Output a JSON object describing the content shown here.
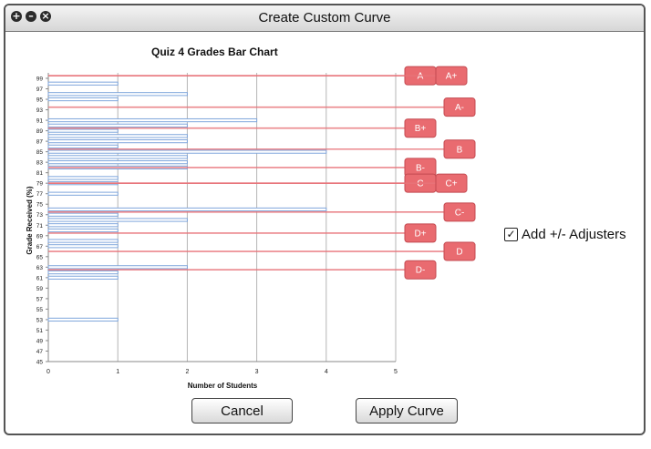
{
  "window": {
    "title": "Create Custom Curve"
  },
  "title_controls": [
    "add-icon",
    "minimize-icon",
    "close-icon"
  ],
  "chart_data": {
    "type": "bar",
    "orientation": "horizontal",
    "title": "Quiz 4 Grades Bar Chart",
    "xlabel": "Number of Students",
    "ylabel": "Grade Received (%)",
    "xlim": [
      0,
      5
    ],
    "ylim": [
      45,
      100
    ],
    "xticks": [
      0,
      1,
      2,
      3,
      4,
      5
    ],
    "yticks": [
      99,
      97,
      95,
      93,
      91,
      89,
      87,
      85,
      83,
      81,
      79,
      77,
      75,
      73,
      71,
      69,
      67,
      65,
      63,
      61,
      59,
      57,
      55,
      53,
      51,
      49,
      47,
      45
    ],
    "grid": true,
    "bar_color": "#7fa6dc",
    "bars": [
      {
        "grade": 98,
        "students": 1
      },
      {
        "grade": 96,
        "students": 2
      },
      {
        "grade": 95,
        "students": 1
      },
      {
        "grade": 91,
        "students": 3
      },
      {
        "grade": 90,
        "students": 2
      },
      {
        "grade": 89,
        "students": 1
      },
      {
        "grade": 88,
        "students": 2
      },
      {
        "grade": 87,
        "students": 2
      },
      {
        "grade": 86,
        "students": 1
      },
      {
        "grade": 85,
        "students": 4
      },
      {
        "grade": 84,
        "students": 2
      },
      {
        "grade": 83,
        "students": 2
      },
      {
        "grade": 82,
        "students": 2
      },
      {
        "grade": 80,
        "students": 1
      },
      {
        "grade": 79,
        "students": 1
      },
      {
        "grade": 77,
        "students": 1
      },
      {
        "grade": 74,
        "students": 4
      },
      {
        "grade": 73,
        "students": 1
      },
      {
        "grade": 72,
        "students": 2
      },
      {
        "grade": 71,
        "students": 1
      },
      {
        "grade": 70,
        "students": 1
      },
      {
        "grade": 68,
        "students": 1
      },
      {
        "grade": 67,
        "students": 1
      },
      {
        "grade": 63,
        "students": 2
      },
      {
        "grade": 62,
        "students": 1
      },
      {
        "grade": 61,
        "students": 1
      },
      {
        "grade": 53,
        "students": 1
      }
    ],
    "cutoff_color": "#e8747a",
    "cutoffs": [
      {
        "label": "A",
        "grade": 99.5,
        "adjuster": false
      },
      {
        "label": "A+",
        "grade": 99.5,
        "adjuster": true
      },
      {
        "label": "A-",
        "grade": 93.5,
        "adjuster": true
      },
      {
        "label": "B+",
        "grade": 89.5,
        "adjuster": true
      },
      {
        "label": "B",
        "grade": 85.5,
        "adjuster": false
      },
      {
        "label": "B-",
        "grade": 82,
        "adjuster": true
      },
      {
        "label": "C",
        "grade": 79,
        "adjuster": false
      },
      {
        "label": "C+",
        "grade": 79,
        "adjuster": true
      },
      {
        "label": "C-",
        "grade": 73.5,
        "adjuster": true
      },
      {
        "label": "D+",
        "grade": 69.5,
        "adjuster": true
      },
      {
        "label": "D",
        "grade": 66,
        "adjuster": false
      },
      {
        "label": "D-",
        "grade": 62.5,
        "adjuster": true
      }
    ]
  },
  "adjusters": {
    "label": "Add +/- Adjusters",
    "checked": true,
    "check_glyph": "✓"
  },
  "buttons": {
    "cancel": "Cancel",
    "apply": "Apply Curve"
  }
}
